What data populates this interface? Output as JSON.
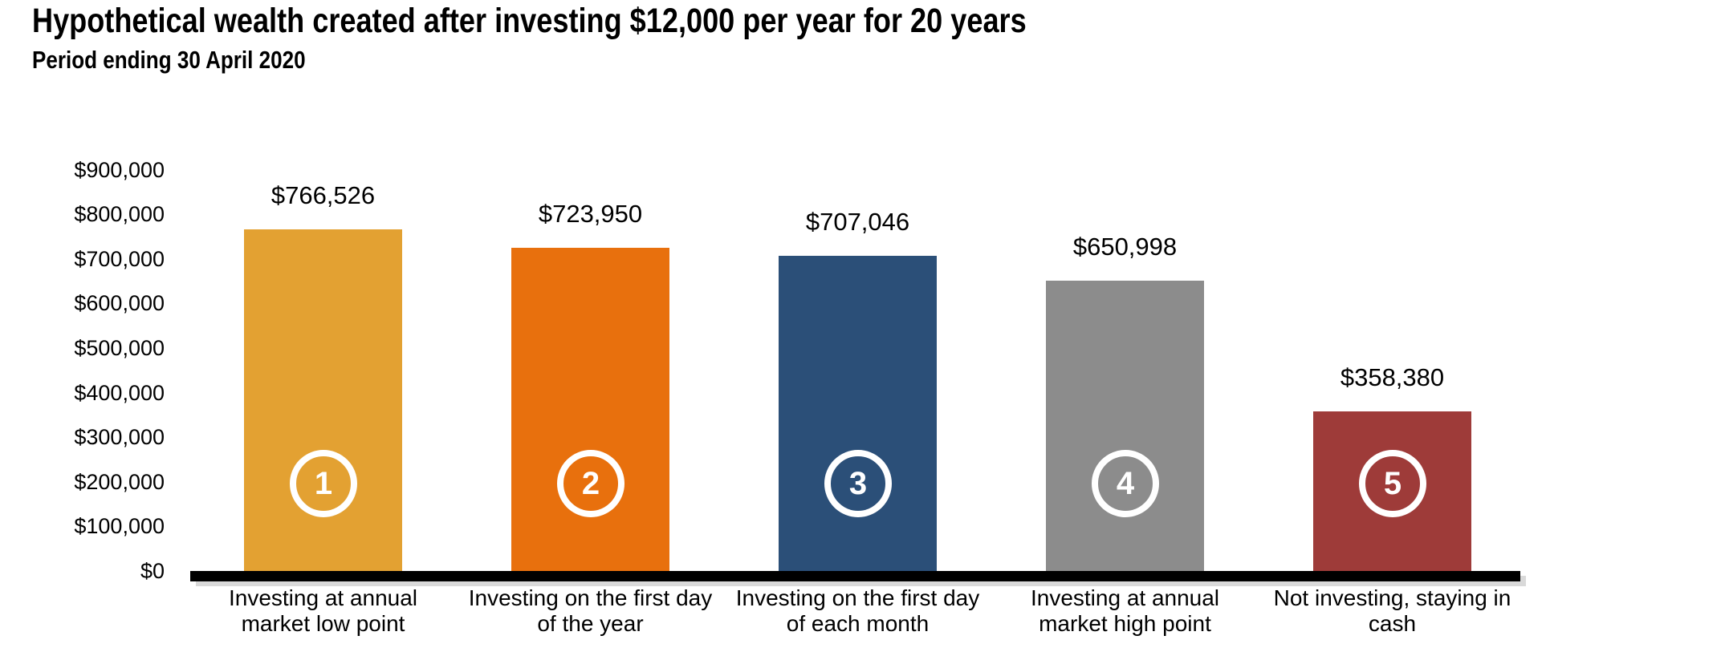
{
  "title": "Hypothetical wealth created after investing $12,000 per year for 20 years",
  "subtitle": "Period ending 30 April 2020",
  "chart_data": {
    "type": "bar",
    "title": "Hypothetical wealth created after investing $12,000 per year for 20 years",
    "subtitle": "Period ending 30 April 2020",
    "categories": [
      "Investing at annual\nmarket low point",
      "Investing on the first day\nof the year",
      "Investing on the first day\nof each month",
      "Investing at annual\nmarket high point",
      "Not investing, staying in\ncash"
    ],
    "values": [
      766526,
      723950,
      707046,
      650998,
      358380
    ],
    "value_labels": [
      "$766,526",
      "$723,950",
      "$707,046",
      "$650,998",
      "$358,380"
    ],
    "bar_colors": [
      "#E3A132",
      "#E8700D",
      "#2B4F78",
      "#8C8C8C",
      "#9E3B39"
    ],
    "markers": [
      "1",
      "2",
      "3",
      "4",
      "5"
    ],
    "marker_style": {
      "ring_color": "#FFFFFF",
      "text_color": "#FFFFFF"
    },
    "y_ticks": [
      "$900,000",
      "$800,000",
      "$700,000",
      "$600,000",
      "$500,000",
      "$400,000",
      "$300,000",
      "$200,000",
      "$100,000",
      "$0"
    ],
    "ylim": [
      0,
      900000
    ],
    "xlabel": "",
    "ylabel": "",
    "grid": false,
    "legend": false,
    "axis_color": "#000000"
  }
}
